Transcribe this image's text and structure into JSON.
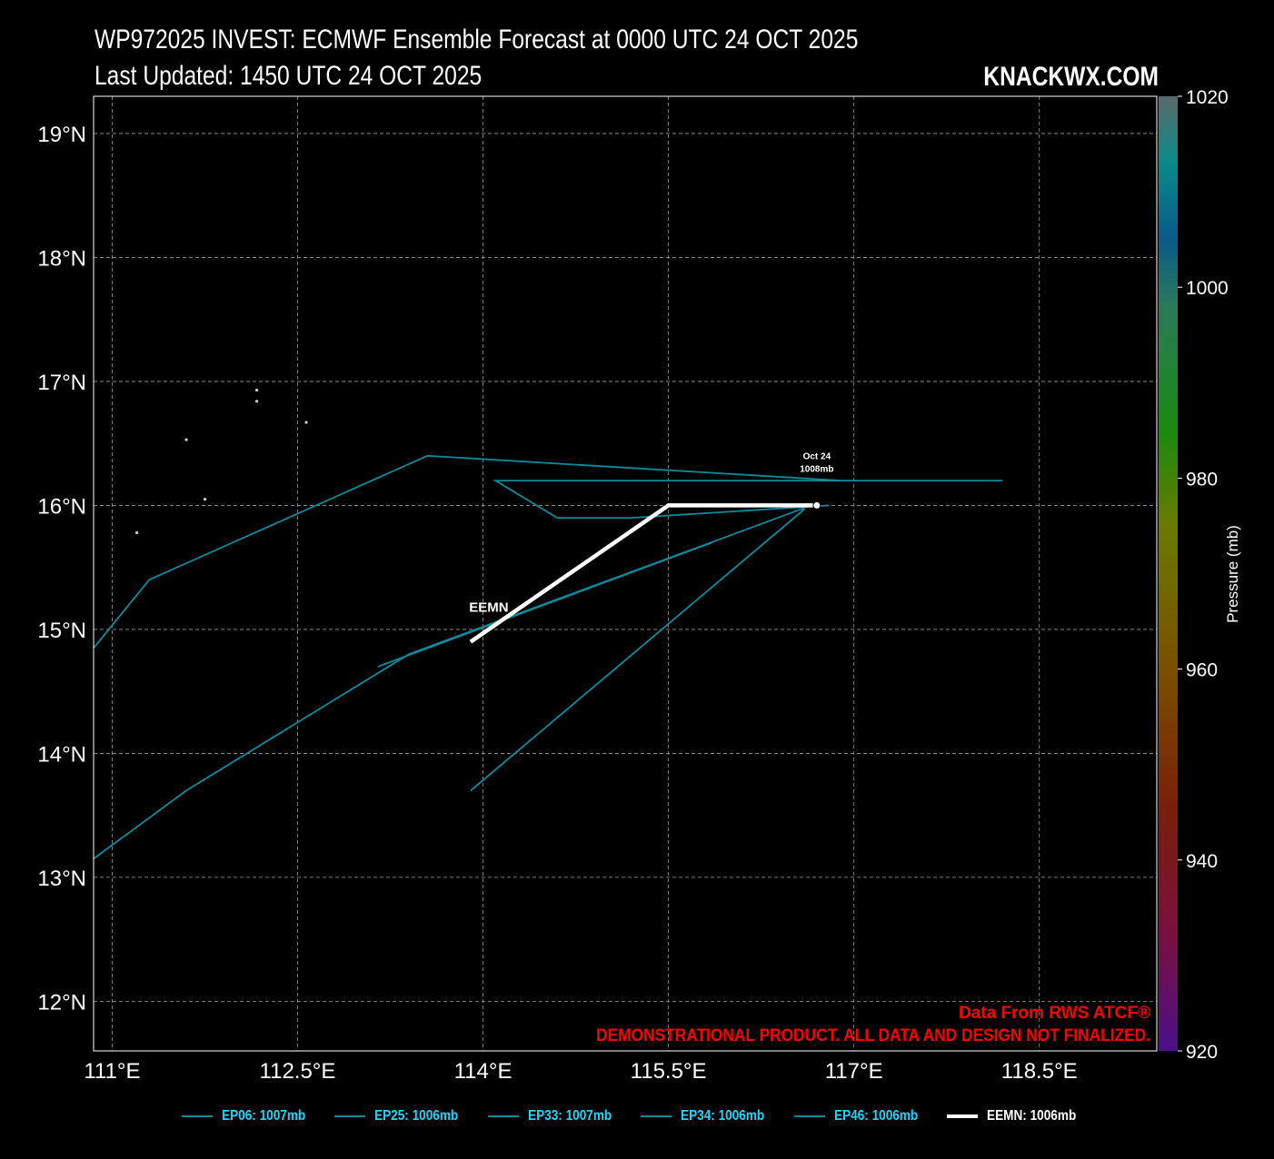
{
  "header": {
    "title_line1": "WP972025 INVEST: ECMWF Ensemble Forecast at 0000 UTC 24 OCT 2025",
    "title_line2": "Last Updated: 1450 UTC 24 OCT 2025",
    "brand": "KNACKWX.COM"
  },
  "footer_notes": {
    "source": "Data From RWS ATCF®",
    "disclaimer": "DEMONSTRATIONAL PRODUCT. ALL DATA AND DESIGN NOT FINALIZED."
  },
  "colors": {
    "member": "#0e8a9c",
    "mean": "#ffffff",
    "legend_member_text": "#1ad7ff",
    "notes": "#ff0000",
    "grid": "#9a9a9a"
  },
  "chart_data": {
    "type": "line",
    "xlim": [
      110.85,
      119.45
    ],
    "ylim": [
      11.6,
      19.3
    ],
    "x_ticks": [
      111,
      112.5,
      114,
      115.5,
      117,
      118.5
    ],
    "x_tick_labels": [
      "111°E",
      "112.5°E",
      "114°E",
      "115.5°E",
      "117°E",
      "118.5°E"
    ],
    "y_ticks": [
      12,
      13,
      14,
      15,
      16,
      17,
      18,
      19
    ],
    "y_tick_labels": [
      "12°N",
      "13°N",
      "14°N",
      "15°N",
      "16°N",
      "17°N",
      "18°N",
      "19°N"
    ],
    "grid": true,
    "colorbar": {
      "label": "Pressure (mb)",
      "min": 920,
      "max": 1020,
      "tick_labels": [
        "920",
        "940",
        "960",
        "980",
        "1000",
        "1020"
      ]
    },
    "series": [
      {
        "name": "EP06: 1007mb",
        "lon": [
          116.9,
          113.55,
          111.3,
          110.85
        ],
        "lat": [
          16.2,
          16.4,
          15.4,
          14.85
        ]
      },
      {
        "name": "EP25: 1006mb",
        "lon": [
          116.6,
          113.4,
          111.6,
          110.85
        ],
        "lat": [
          15.98,
          14.8,
          13.7,
          13.15
        ]
      },
      {
        "name": "EP33: 1007mb",
        "lon": [
          116.6,
          113.9
        ],
        "lat": [
          15.97,
          13.7
        ]
      },
      {
        "name": "EP34: 1006mb",
        "lon": [
          115.85,
          113.15
        ],
        "lat": [
          15.7,
          14.7
        ]
      },
      {
        "name": "EP46: 1006mb",
        "lon": [
          116.8,
          115.2,
          114.6,
          114.1,
          116.9,
          118.2
        ],
        "lat": [
          16.0,
          15.9,
          15.9,
          16.2,
          16.2,
          16.2
        ]
      },
      {
        "name": "EEMN: 1006mb",
        "lon": [
          116.7,
          115.5,
          113.9
        ],
        "lat": [
          16.0,
          16.0,
          14.9
        ]
      }
    ],
    "mean_label": "EEMN",
    "start_annotation": {
      "line1": "Oct 24",
      "line2": "1008mb",
      "lon": 116.7,
      "lat": 16.0
    },
    "islands": [
      {
        "lon": 112.17,
        "lat": 16.93
      },
      {
        "lon": 112.17,
        "lat": 16.84
      },
      {
        "lon": 112.57,
        "lat": 16.67
      },
      {
        "lon": 111.6,
        "lat": 16.53
      },
      {
        "lon": 111.75,
        "lat": 16.05
      },
      {
        "lon": 111.2,
        "lat": 15.78
      }
    ]
  }
}
